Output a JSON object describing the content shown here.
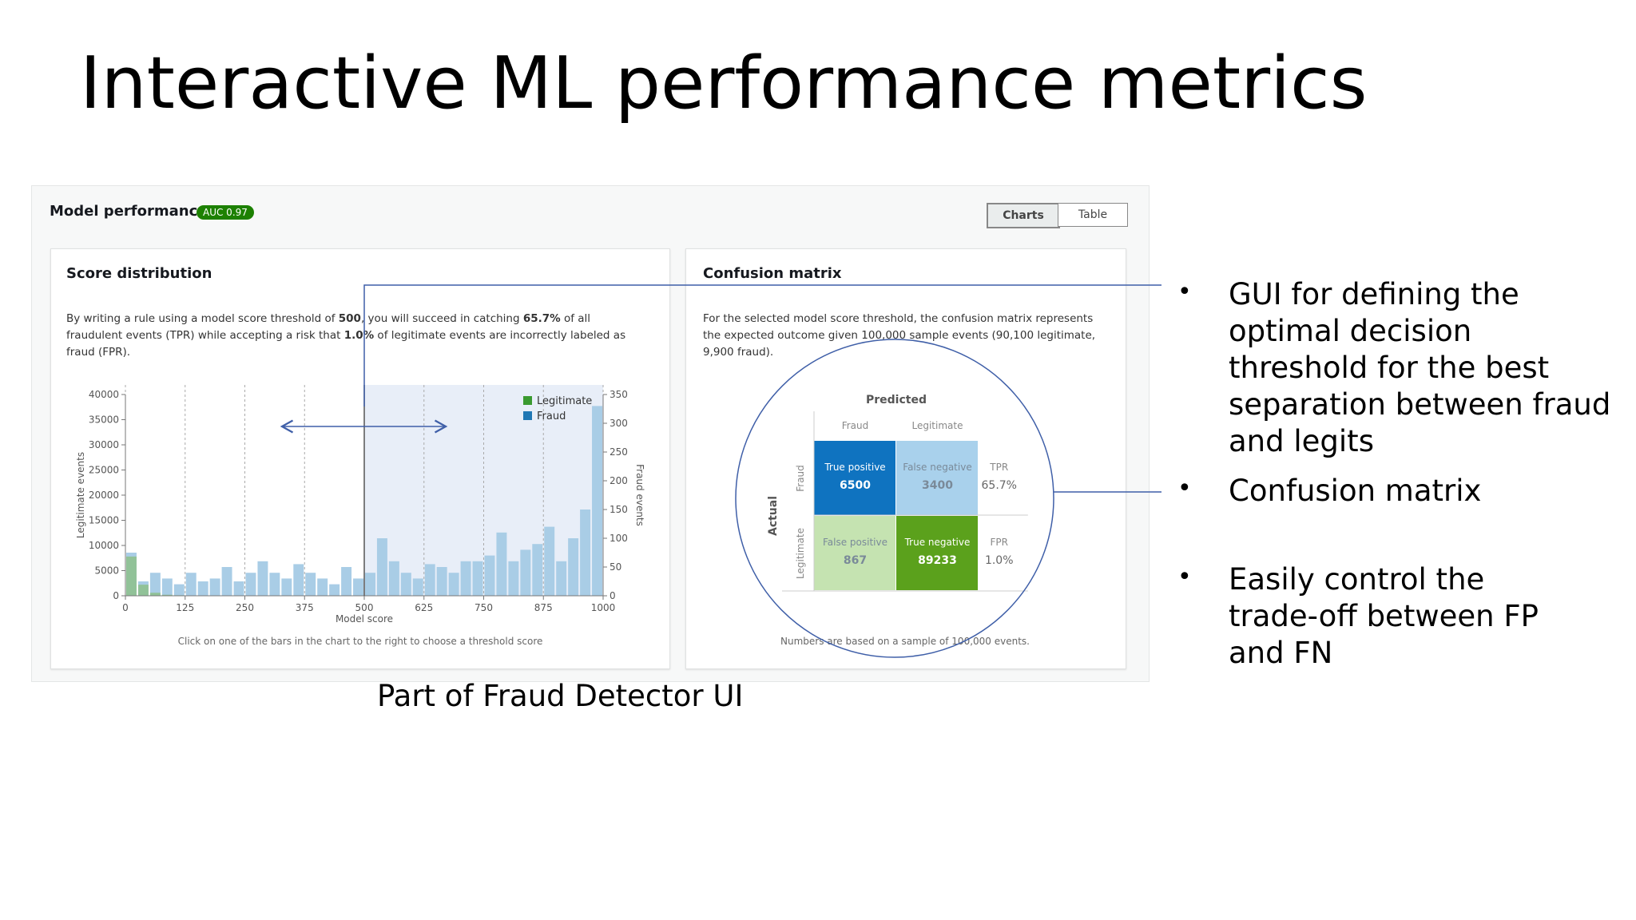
{
  "title": "Interactive ML performance metrics",
  "panel": {
    "title": "Model performance",
    "badge": "AUC 0.97",
    "tabs": [
      "Charts",
      "Table"
    ]
  },
  "score_card": {
    "title": "Score distribution",
    "description": [
      "By writing a rule using a model score threshold of ",
      "500",
      ", you will succeed in catching ",
      "65.7%",
      " of all fraudulent events (TPR) while accepting a risk that ",
      "1.0%",
      " of legitimate events are incorrectly labeled as fraud (FPR)."
    ],
    "footnote": "Click on one of the bars in the chart to the right to choose a threshold score"
  },
  "chart_data": {
    "type": "histogram",
    "x_label": "Model score",
    "y_label": "Legitimate events",
    "y2_label": "Fraud events",
    "bins": [
      0,
      25,
      50,
      75,
      100,
      125,
      150,
      175,
      200,
      225,
      250,
      275,
      300,
      325,
      350,
      375,
      400,
      425,
      450,
      475,
      500,
      525,
      550,
      575,
      600,
      625,
      650,
      675,
      700,
      725,
      750,
      775,
      800,
      825,
      850,
      875,
      900,
      925,
      950,
      975,
      1000
    ],
    "series": [
      {
        "name": "Fraud",
        "color": "#a9cde6",
        "axis": "y2",
        "values": [
          75,
          25,
          40,
          30,
          20,
          40,
          25,
          30,
          50,
          25,
          40,
          60,
          40,
          30,
          55,
          40,
          30,
          20,
          50,
          30,
          40,
          100,
          60,
          40,
          30,
          55,
          50,
          40,
          60,
          60,
          70,
          110,
          60,
          80,
          90,
          120,
          60,
          100,
          150,
          330
        ]
      },
      {
        "name": "Legitimate",
        "color": "#8dbf8a",
        "values": [
          7800,
          2200,
          600,
          200,
          100,
          50,
          0,
          0,
          0,
          0,
          0,
          0,
          0,
          0,
          0,
          0,
          0,
          0,
          0,
          0,
          0,
          0,
          0,
          0,
          0,
          0,
          0,
          0,
          0,
          0,
          0,
          0,
          0,
          0,
          0,
          0,
          0,
          0,
          0,
          0
        ]
      }
    ],
    "threshold": 500,
    "xlim": [
      0,
      1000
    ],
    "xticks": [
      0,
      125,
      250,
      375,
      500,
      625,
      750,
      875,
      1000
    ],
    "ylim": [
      0,
      40000
    ],
    "yticks": [
      0,
      5000,
      10000,
      15000,
      20000,
      25000,
      30000,
      35000,
      40000
    ],
    "y2lim": [
      0,
      350
    ],
    "y2ticks": [
      0,
      50,
      100,
      150,
      200,
      250,
      300,
      350
    ],
    "grid": true,
    "legend": "top-right"
  },
  "confusion_card": {
    "title": "Confusion matrix",
    "description": "For the selected model score threshold, the confusion matrix represents the expected outcome given 100,000 sample events (90,100 legitimate, 9,900 fraud).",
    "predicted": "Predicted",
    "actual": "Actual",
    "columns": [
      "Fraud",
      "Legitimate"
    ],
    "rows": [
      "Fraud",
      "Legitimate"
    ],
    "cells": [
      [
        {
          "label": "True positive",
          "value": "6500"
        },
        {
          "label": "False negative",
          "value": "3400"
        }
      ],
      [
        {
          "label": "False positive",
          "value": "867"
        },
        {
          "label": "True negative",
          "value": "89233"
        }
      ]
    ],
    "rates": [
      {
        "label": "TPR",
        "value": "65.7%"
      },
      {
        "label": "FPR",
        "value": "1.0%"
      }
    ],
    "footnote": "Numbers are based on a sample of 100,000 events."
  },
  "caption": "Part of Fraud Detector UI",
  "bullets": [
    "GUI for defining the optimal decision threshold for the best separation between fraud and legits",
    "Confusion matrix",
    "Easily control the trade-off between FP and FN"
  ]
}
